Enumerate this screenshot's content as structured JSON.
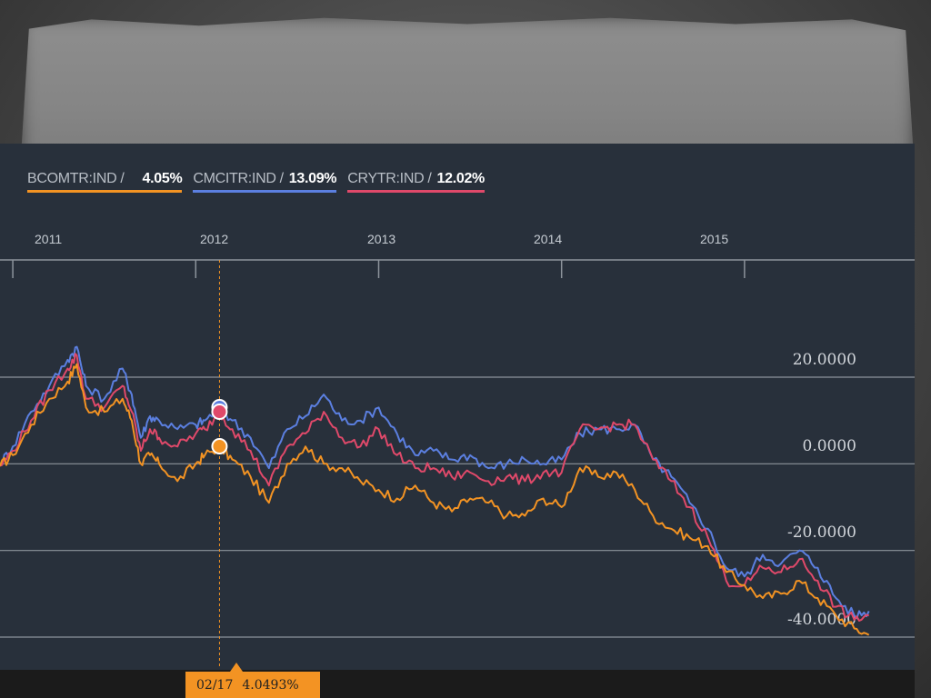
{
  "legend": [
    {
      "name": "BCOMTR:IND",
      "value": "4.05%",
      "color": "#f39323"
    },
    {
      "name": "CMCITR:IND",
      "value": "13.09%",
      "color": "#5b7fe0"
    },
    {
      "name": "CRYTR:IND",
      "value": "12.02%",
      "color": "#e0496a"
    }
  ],
  "tooltip": {
    "date": "02/17",
    "value": "4.0493%"
  },
  "chart_data": {
    "type": "line",
    "x_ticks": [
      "2011",
      "2012",
      "2013",
      "2014",
      "2015"
    ],
    "y_ticks": [
      "20.0000",
      "0.0000",
      "-20.0000",
      "-40.0000"
    ],
    "y_tick_values": [
      20,
      0,
      -20,
      -40
    ],
    "ylim": [
      -45,
      40
    ],
    "xlim": [
      2010.93,
      2015.93
    ],
    "grid": "horizontal",
    "legend_position": "top-left",
    "crosshair_x": 2012.13,
    "series": [
      {
        "name": "BCOMTR:IND",
        "color": "#f39323",
        "x": [
          2010.93,
          2011.0,
          2011.1,
          2011.2,
          2011.3,
          2011.35,
          2011.4,
          2011.5,
          2011.6,
          2011.65,
          2011.7,
          2011.75,
          2011.8,
          2011.9,
          2012.0,
          2012.05,
          2012.13,
          2012.2,
          2012.3,
          2012.4,
          2012.5,
          2012.6,
          2012.7,
          2012.8,
          2012.9,
          2013.0,
          2013.1,
          2013.2,
          2013.3,
          2013.4,
          2013.5,
          2013.6,
          2013.7,
          2013.8,
          2013.9,
          2014.0,
          2014.1,
          2014.2,
          2014.3,
          2014.4,
          2014.5,
          2014.6,
          2014.7,
          2014.8,
          2014.9,
          2015.0,
          2015.1,
          2015.2,
          2015.3,
          2015.4,
          2015.5,
          2015.6,
          2015.68
        ],
        "values": [
          -0.5,
          2,
          9,
          15,
          19,
          23,
          13,
          12,
          15,
          10,
          0,
          2,
          0,
          -4,
          0,
          2,
          4,
          1,
          -3,
          -9,
          0,
          4,
          0,
          -1,
          -4,
          -6,
          -8,
          -5,
          -9,
          -11,
          -8,
          -9,
          -12,
          -12,
          -8,
          -10,
          -1,
          -3,
          -2,
          -6,
          -12,
          -15,
          -17,
          -19,
          -25,
          -28,
          -31,
          -30,
          -27,
          -31,
          -35,
          -38,
          -39.5
        ]
      },
      {
        "name": "CMCITR:IND",
        "color": "#5b7fe0",
        "x": [
          2010.93,
          2011.0,
          2011.1,
          2011.2,
          2011.3,
          2011.35,
          2011.4,
          2011.5,
          2011.6,
          2011.65,
          2011.7,
          2011.75,
          2011.8,
          2011.9,
          2012.0,
          2012.05,
          2012.13,
          2012.2,
          2012.3,
          2012.4,
          2012.5,
          2012.6,
          2012.7,
          2012.8,
          2012.9,
          2013.0,
          2013.1,
          2013.2,
          2013.3,
          2013.4,
          2013.5,
          2013.6,
          2013.7,
          2013.8,
          2013.9,
          2014.0,
          2014.1,
          2014.2,
          2014.3,
          2014.4,
          2014.5,
          2014.6,
          2014.7,
          2014.8,
          2014.9,
          2015.0,
          2015.1,
          2015.2,
          2015.3,
          2015.4,
          2015.5,
          2015.6,
          2015.68
        ],
        "values": [
          0,
          4,
          12,
          18,
          24,
          27,
          18,
          15,
          22,
          16,
          6,
          11,
          10,
          8,
          9,
          10,
          13,
          10,
          6,
          -1,
          8,
          11,
          16,
          10,
          10,
          13,
          7,
          2,
          3,
          1,
          2,
          -1,
          0,
          1,
          0,
          1,
          7,
          8,
          8,
          9,
          1,
          -3,
          -9,
          -15,
          -24,
          -26,
          -21,
          -23,
          -20,
          -24,
          -31,
          -35,
          -34
        ]
      },
      {
        "name": "CRYTR:IND",
        "color": "#e0496a",
        "x": [
          2010.93,
          2011.0,
          2011.1,
          2011.2,
          2011.3,
          2011.35,
          2011.4,
          2011.5,
          2011.6,
          2011.65,
          2011.7,
          2011.75,
          2011.8,
          2011.9,
          2012.0,
          2012.05,
          2012.13,
          2012.2,
          2012.3,
          2012.4,
          2012.5,
          2012.6,
          2012.7,
          2012.8,
          2012.9,
          2013.0,
          2013.1,
          2013.2,
          2013.3,
          2013.4,
          2013.5,
          2013.6,
          2013.7,
          2013.8,
          2013.9,
          2014.0,
          2014.1,
          2014.2,
          2014.3,
          2014.4,
          2014.5,
          2014.6,
          2014.7,
          2014.8,
          2014.9,
          2015.0,
          2015.1,
          2015.2,
          2015.3,
          2015.4,
          2015.5,
          2015.6,
          2015.68
        ],
        "values": [
          -0.5,
          3,
          10,
          17,
          22,
          25,
          15,
          13,
          18,
          12,
          3,
          8,
          6,
          4,
          7,
          8,
          12,
          8,
          3,
          -5,
          4,
          7,
          12,
          6,
          4,
          8,
          2,
          -1,
          -1,
          -3,
          -2,
          -4,
          -3,
          -4,
          -2,
          -2,
          8,
          8,
          9,
          9,
          1,
          -4,
          -10,
          -17,
          -27,
          -28,
          -24,
          -25,
          -22,
          -27,
          -33,
          -36,
          -35
        ]
      }
    ],
    "markers": [
      {
        "series": "CMCITR:IND",
        "x": 2012.13,
        "value": 13.09
      },
      {
        "series": "CRYTR:IND",
        "x": 2012.13,
        "value": 12.02
      },
      {
        "series": "BCOMTR:IND",
        "x": 2012.13,
        "value": 4.05
      }
    ]
  }
}
